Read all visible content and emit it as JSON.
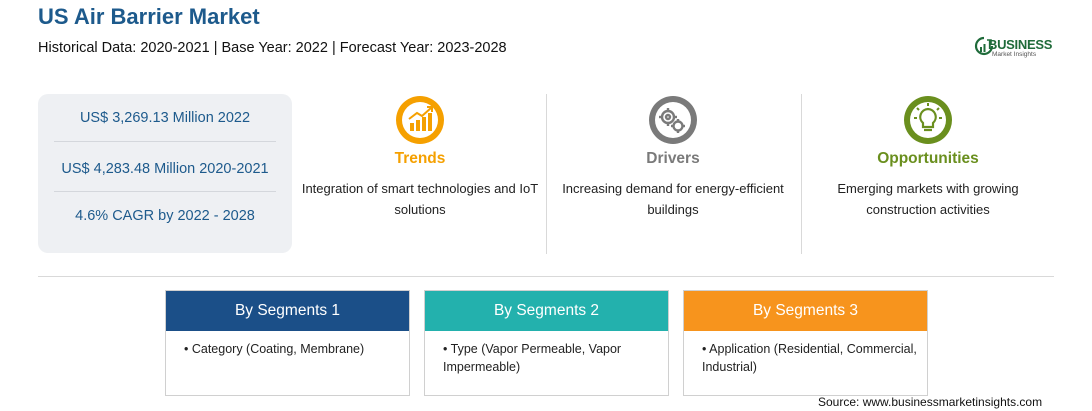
{
  "header": {
    "title": "US Air Barrier Market",
    "subtitle": "Historical Data: 2020-2021 | Base Year: 2022 | Forecast Year: 2023-2028"
  },
  "logo": {
    "word": "BUSINESS",
    "sub": "Market Insights"
  },
  "stats": [
    "US$ 3,269.13 Million 2022",
    "US$ 4,283.48 Million 2020-2021",
    "4.6% CAGR by 2022 - 2028"
  ],
  "columns": [
    {
      "title": "Trends",
      "color": "#f5a000",
      "icon": "trend-chart-icon",
      "desc": "Integration of smart technologies and IoT solutions"
    },
    {
      "title": "Drivers",
      "color": "#7a7a7a",
      "icon": "gears-icon",
      "desc": "Increasing demand for energy-efficient buildings"
    },
    {
      "title": "Opportunities",
      "color": "#6a8f1e",
      "icon": "lightbulb-icon",
      "desc": "Emerging markets with growing construction activities"
    }
  ],
  "segments": [
    {
      "title": "By Segments 1",
      "color": "#1b4f88",
      "item": "• Category (Coating, Membrane)"
    },
    {
      "title": "By Segments 2",
      "color": "#23b1ad",
      "item": "• Type (Vapor Permeable, Vapor Impermeable)"
    },
    {
      "title": "By Segments 3",
      "color": "#f7941d",
      "item": "• Application (Residential, Commercial, Industrial)"
    }
  ],
  "source": "Source: www.businessmarketinsights.com"
}
